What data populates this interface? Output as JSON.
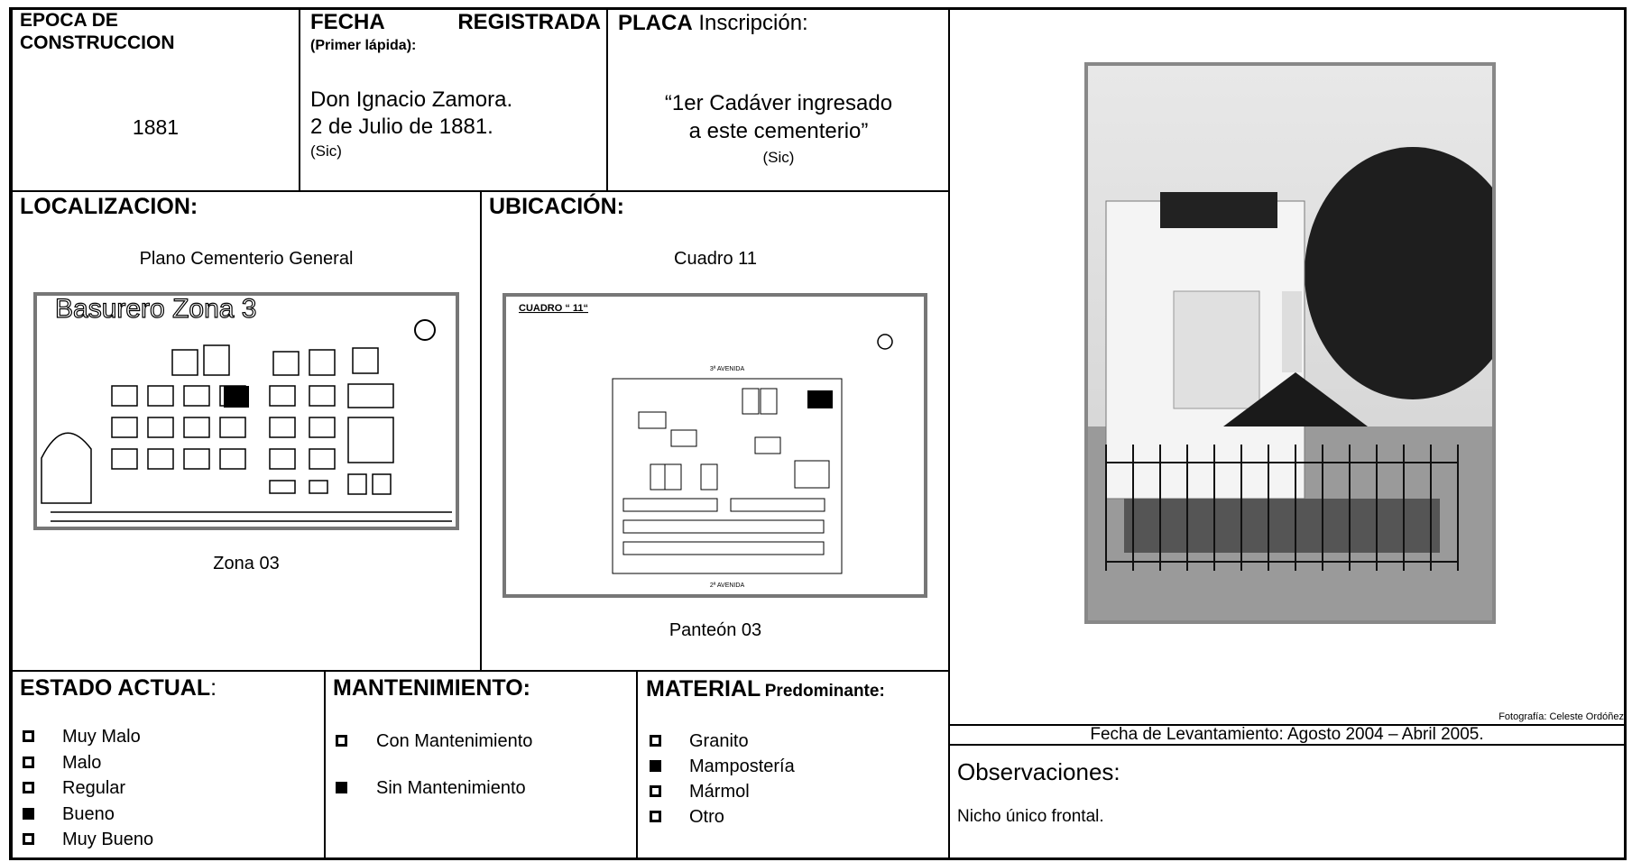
{
  "epoca": {
    "label": "EPOCA DE CONSTRUCCION",
    "value": "1881"
  },
  "fecha": {
    "label": "FECHA REGISTRADA",
    "sublabel": "(Primer lápida):",
    "lines": [
      "Don Ignacio Zamora.",
      "2 de Julio de 1881."
    ],
    "note": "(Sic)"
  },
  "placa": {
    "label": "PLACA",
    "sublabel": "Inscripción:",
    "lines": [
      "“1er  Cadáver ingresado",
      "a este cementerio”"
    ],
    "note": "(Sic)"
  },
  "localizacion": {
    "label": "LOCALIZACION:",
    "caption_top": "Plano Cementerio General",
    "map_title": "Basurero Zona 3",
    "caption_bottom": "Zona 03"
  },
  "ubicacion": {
    "label": "UBICACIÓN:",
    "caption_top": "Cuadro 11",
    "map_title": "CUADRO “ 11“",
    "map_top": "3ª AVENIDA",
    "map_bottom": "2ª AVENIDA",
    "caption_bottom": "Panteón 03"
  },
  "estado": {
    "label": "ESTADO ACTUAL",
    "suffix": ":",
    "options": [
      {
        "text": "Muy Malo",
        "checked": false
      },
      {
        "text": "Malo",
        "checked": false
      },
      {
        "text": "Regular",
        "checked": false
      },
      {
        "text": "Bueno",
        "checked": true
      },
      {
        "text": "Muy Bueno",
        "checked": false
      }
    ]
  },
  "mantenimiento": {
    "label": "MANTENIMIENTO:",
    "options": [
      {
        "text": "Con Mantenimiento",
        "checked": false
      },
      {
        "text": "Sin Mantenimiento",
        "checked": true
      }
    ]
  },
  "material": {
    "label": "MATERIAL",
    "sublabel": "Predominante:",
    "options": [
      {
        "text": "Granito",
        "checked": false
      },
      {
        "text": "Mampostería",
        "checked": true
      },
      {
        "text": "Mármol",
        "checked": false
      },
      {
        "text": "Otro",
        "checked": false
      }
    ]
  },
  "photo_credit": "Fotografía:  Celeste Ordóñez",
  "fecha_levantamiento": "Fecha de Levantamiento: Agosto 2004 – Abril 2005.",
  "observaciones": {
    "label": "Observaciones:",
    "text": "Nicho único frontal."
  }
}
